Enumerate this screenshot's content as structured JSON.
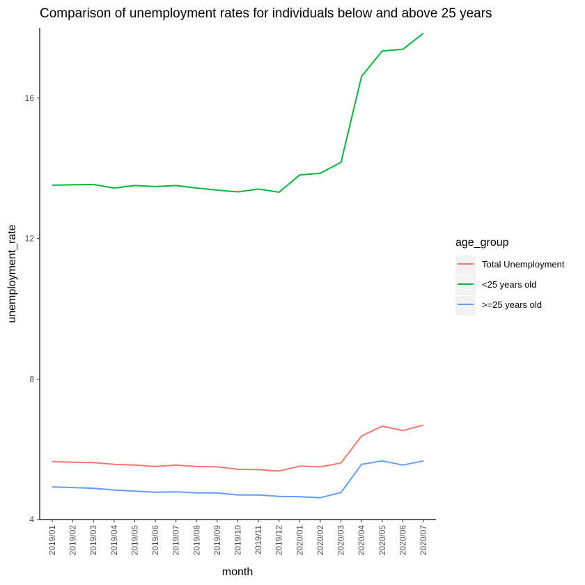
{
  "chart_data": {
    "type": "line",
    "title": "Comparison of unemployment rates for individuals below and above 25 years",
    "xlabel": "month",
    "ylabel": "unemployment_rate",
    "categories": [
      "2019/01",
      "2019/02",
      "2019/03",
      "2019/04",
      "2019/05",
      "2019/06",
      "2019/07",
      "2019/08",
      "2019/09",
      "2019/10",
      "2019/11",
      "2019/12",
      "2020/01",
      "2020/02",
      "2020/03",
      "2020/04",
      "2020/05",
      "2020/06",
      "2020/07"
    ],
    "ylim": [
      4,
      18
    ],
    "yticks": [
      4,
      8,
      12,
      16
    ],
    "grid": false,
    "legend": {
      "title": "age_group",
      "position": "right"
    },
    "series": [
      {
        "name": "Total Unemployment",
        "color": "#F8766D",
        "values": [
          5.65,
          5.63,
          5.62,
          5.57,
          5.55,
          5.51,
          5.55,
          5.51,
          5.5,
          5.43,
          5.42,
          5.38,
          5.52,
          5.5,
          5.61,
          6.38,
          6.66,
          6.53,
          6.69
        ]
      },
      {
        "name": "<25 years old",
        "color": "#00BA38",
        "values": [
          13.52,
          13.53,
          13.54,
          13.44,
          13.51,
          13.48,
          13.51,
          13.44,
          13.38,
          13.33,
          13.41,
          13.32,
          13.81,
          13.86,
          14.17,
          16.62,
          17.34,
          17.39,
          17.85
        ]
      },
      {
        "name": ">=25 years old",
        "color": "#619CFF",
        "values": [
          4.93,
          4.91,
          4.89,
          4.84,
          4.81,
          4.78,
          4.79,
          4.76,
          4.76,
          4.7,
          4.7,
          4.66,
          4.65,
          4.62,
          4.77,
          5.57,
          5.67,
          5.55,
          5.67
        ]
      }
    ]
  }
}
